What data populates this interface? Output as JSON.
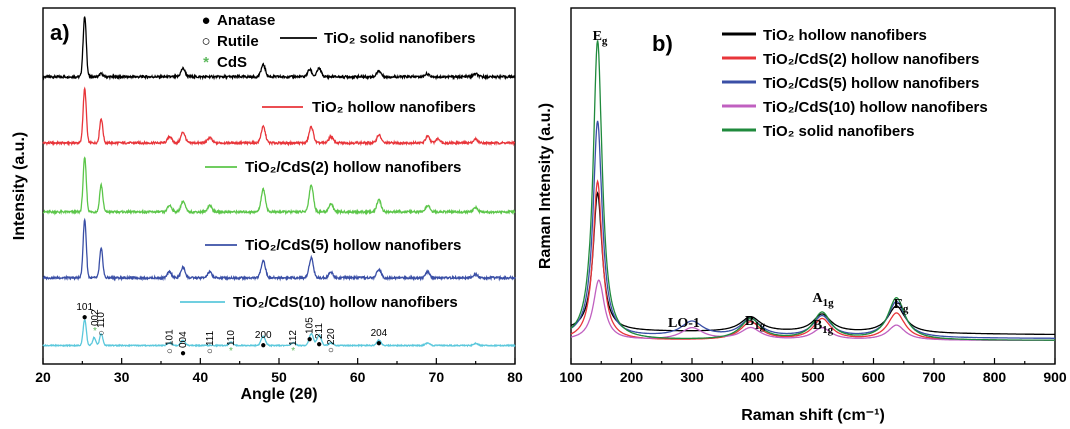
{
  "chart_data": [
    {
      "type": "line",
      "panel_label": "a)",
      "xlabel": "Angle (2θ)",
      "ylabel": "Intensity (a.u.)",
      "xlim": [
        20,
        80
      ],
      "xticks": [
        "20",
        "30",
        "40",
        "50",
        "60",
        "70",
        "80"
      ],
      "yticks": [],
      "phase_legend": [
        {
          "symbol": "●",
          "label": "Anatase",
          "color": "#000000"
        },
        {
          "symbol": "○",
          "label": "Rutile",
          "color": "#000000"
        },
        {
          "symbol": "*",
          "label": "CdS",
          "color": "#5cb85c"
        }
      ],
      "series": [
        {
          "name": "TiO₂ solid nanofibers",
          "color": "#000000",
          "peaks": [
            [
              25.3,
              1.0
            ],
            [
              27.4,
              0.05
            ],
            [
              37.8,
              0.14
            ],
            [
              48.0,
              0.2
            ],
            [
              53.9,
              0.12
            ],
            [
              55.1,
              0.14
            ],
            [
              62.7,
              0.1
            ],
            [
              68.8,
              0.05
            ],
            [
              75.0,
              0.05
            ]
          ]
        },
        {
          "name": "TiO₂ hollow nanofibers",
          "color": "#e8353a",
          "peaks": [
            [
              25.3,
              1.0
            ],
            [
              27.4,
              0.45
            ],
            [
              36.1,
              0.12
            ],
            [
              37.8,
              0.2
            ],
            [
              41.2,
              0.1
            ],
            [
              48.0,
              0.3
            ],
            [
              54.1,
              0.3
            ],
            [
              56.6,
              0.12
            ],
            [
              62.7,
              0.15
            ],
            [
              68.9,
              0.12
            ],
            [
              70.2,
              0.08
            ],
            [
              75.0,
              0.07
            ]
          ]
        },
        {
          "name": "TiO₂/CdS(2) hollow nanofibers",
          "color": "#5cc64a",
          "peaks": [
            [
              25.3,
              1.0
            ],
            [
              27.4,
              0.5
            ],
            [
              36.1,
              0.12
            ],
            [
              37.8,
              0.2
            ],
            [
              41.2,
              0.12
            ],
            [
              48.0,
              0.42
            ],
            [
              54.1,
              0.5
            ],
            [
              56.6,
              0.15
            ],
            [
              62.7,
              0.22
            ],
            [
              68.9,
              0.12
            ],
            [
              75.0,
              0.08
            ]
          ]
        },
        {
          "name": "TiO₂/CdS(5) hollow nanofibers",
          "color": "#3a4fa6",
          "peaks": [
            [
              25.3,
              1.0
            ],
            [
              27.4,
              0.5
            ],
            [
              36.1,
              0.1
            ],
            [
              37.8,
              0.18
            ],
            [
              41.2,
              0.1
            ],
            [
              48.0,
              0.3
            ],
            [
              54.1,
              0.35
            ],
            [
              56.6,
              0.1
            ],
            [
              62.7,
              0.15
            ],
            [
              68.9,
              0.1
            ],
            [
              75.0,
              0.06
            ]
          ]
        },
        {
          "name": "TiO₂/CdS(10) hollow nanofibers",
          "color": "#5bc8dc",
          "peaks": [
            [
              25.3,
              1.0
            ],
            [
              26.5,
              0.3
            ],
            [
              27.4,
              0.45
            ],
            [
              36.1,
              0.1
            ],
            [
              37.8,
              0.2
            ],
            [
              43.9,
              0.12
            ],
            [
              48.0,
              0.35
            ],
            [
              51.8,
              0.1
            ],
            [
              54.1,
              0.45
            ],
            [
              55.1,
              0.4
            ],
            [
              56.6,
              0.1
            ],
            [
              62.7,
              0.2
            ],
            [
              68.9,
              0.1
            ],
            [
              75.0,
              0.08
            ]
          ]
        }
      ],
      "annotations": [
        {
          "text": "101",
          "x": 25.3,
          "marker": "●",
          "color": "#000000"
        },
        {
          "text": "002",
          "x": 26.6,
          "marker": "*",
          "color": "#5cb85c"
        },
        {
          "text": "110",
          "x": 27.4,
          "marker": "○",
          "color": "#000000"
        },
        {
          "text": "101",
          "x": 36.1,
          "marker": "○",
          "color": "#000000"
        },
        {
          "text": "004",
          "x": 37.8,
          "marker": "●",
          "color": "#000000"
        },
        {
          "text": "111",
          "x": 41.2,
          "marker": "○",
          "color": "#000000"
        },
        {
          "text": "110",
          "x": 43.9,
          "marker": "*",
          "color": "#5cb85c"
        },
        {
          "text": "200",
          "x": 48.0,
          "marker": "●",
          "color": "#000000"
        },
        {
          "text": "112",
          "x": 51.8,
          "marker": "*",
          "color": "#5cb85c"
        },
        {
          "text": "105",
          "x": 53.9,
          "marker": "●",
          "color": "#000000"
        },
        {
          "text": "211",
          "x": 55.1,
          "marker": "●",
          "color": "#000000"
        },
        {
          "text": "220",
          "x": 56.6,
          "marker": "○",
          "color": "#000000"
        },
        {
          "text": "204",
          "x": 62.7,
          "marker": "●",
          "color": "#000000"
        }
      ]
    },
    {
      "type": "line",
      "panel_label": "b)",
      "xlabel": "Raman shift (cm⁻¹)",
      "ylabel": "Raman Intensity (a.u.)",
      "xlim": [
        100,
        900
      ],
      "xticks": [
        "100",
        "200",
        "300",
        "400",
        "500",
        "600",
        "700",
        "800",
        "900"
      ],
      "yticks": [],
      "peak_labels": [
        {
          "text": "Eg",
          "x": 144
        },
        {
          "text": "LO-1",
          "x": 300
        },
        {
          "text": "B1g",
          "x": 397
        },
        {
          "text": "A1g",
          "x": 505
        },
        {
          "text": "B1g",
          "x": 519
        },
        {
          "text": "Eg",
          "x": 638
        }
      ],
      "series": [
        {
          "name": "TiO₂ hollow nanofibers",
          "color": "#000000",
          "baseline": 0.03,
          "peaks": [
            [
              144,
              0.46
            ],
            [
              397,
              0.05
            ],
            [
              515,
              0.06
            ],
            [
              638,
              0.09
            ]
          ]
        },
        {
          "name": "TiO₂/CdS(2) hollow nanofibers",
          "color": "#e8353a",
          "baseline": 0.0,
          "peaks": [
            [
              144,
              0.53
            ],
            [
              397,
              0.06
            ],
            [
              515,
              0.07
            ],
            [
              638,
              0.09
            ]
          ]
        },
        {
          "name": "TiO₂/CdS(5) hollow nanofibers",
          "color": "#3a4fa6",
          "baseline": 0.01,
          "peaks": [
            [
              144,
              0.72
            ],
            [
              300,
              0.05
            ],
            [
              397,
              0.06
            ],
            [
              515,
              0.07
            ],
            [
              638,
              0.12
            ]
          ]
        },
        {
          "name": "TiO₂/CdS(10) hollow nanofibers",
          "color": "#c060c0",
          "baseline": 0.0,
          "peaks": [
            [
              146,
              0.2
            ],
            [
              300,
              0.04
            ],
            [
              397,
              0.04
            ],
            [
              515,
              0.04
            ],
            [
              638,
              0.05
            ]
          ]
        },
        {
          "name": "TiO₂ solid nanofibers",
          "color": "#1f8a3c",
          "baseline": 0.0,
          "peaks": [
            [
              144,
              1.0
            ],
            [
              397,
              0.07
            ],
            [
              515,
              0.09
            ],
            [
              638,
              0.14
            ]
          ]
        }
      ]
    }
  ]
}
